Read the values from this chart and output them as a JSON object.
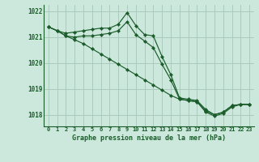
{
  "title": "Graphe pression niveau de la mer (hPa)",
  "background_color": "#cce8dc",
  "grid_color": "#aaccbb",
  "line_color": "#1a5c2a",
  "xlim": [
    -0.5,
    23.5
  ],
  "ylim": [
    1017.55,
    1022.25
  ],
  "yticks": [
    1018,
    1019,
    1020,
    1021,
    1022
  ],
  "xticks": [
    0,
    1,
    2,
    3,
    4,
    5,
    6,
    7,
    8,
    9,
    10,
    11,
    12,
    13,
    14,
    15,
    16,
    17,
    18,
    19,
    20,
    21,
    22,
    23
  ],
  "series": [
    {
      "x": [
        0,
        1,
        2,
        3,
        4,
        5,
        6,
        7,
        8,
        9,
        10,
        11,
        12,
        13,
        14,
        15,
        16,
        17,
        18,
        19,
        20,
        21,
        22,
        23
      ],
      "y": [
        1021.4,
        1021.25,
        1021.15,
        1021.2,
        1021.25,
        1021.3,
        1021.35,
        1021.35,
        1021.5,
        1021.95,
        1021.45,
        1021.1,
        1021.05,
        1020.25,
        1019.55,
        1018.65,
        1018.6,
        1018.55,
        1018.2,
        1018.0,
        1018.1,
        1018.35,
        1018.4,
        1018.4
      ]
    },
    {
      "x": [
        0,
        1,
        2,
        3,
        4,
        5,
        6,
        7,
        8,
        9,
        10,
        11,
        12,
        13,
        14,
        15,
        16,
        17,
        18,
        19,
        20,
        21,
        22,
        23
      ],
      "y": [
        1021.4,
        1021.25,
        1021.05,
        1021.0,
        1021.05,
        1021.05,
        1021.1,
        1021.15,
        1021.25,
        1021.6,
        1021.1,
        1020.85,
        1020.6,
        1019.95,
        1019.35,
        1018.6,
        1018.55,
        1018.5,
        1018.15,
        1018.0,
        1018.1,
        1018.35,
        1018.4,
        1018.4
      ]
    },
    {
      "x": [
        0,
        1,
        2,
        3,
        4,
        5,
        6,
        7,
        8,
        9,
        10,
        11,
        12,
        13,
        14,
        15,
        16,
        17,
        18,
        19,
        20,
        21,
        22,
        23
      ],
      "y": [
        1021.4,
        1021.25,
        1021.05,
        1020.9,
        1020.75,
        1020.55,
        1020.35,
        1020.15,
        1019.95,
        1019.75,
        1019.55,
        1019.35,
        1019.15,
        1018.95,
        1018.75,
        1018.6,
        1018.55,
        1018.5,
        1018.1,
        1017.95,
        1018.05,
        1018.3,
        1018.4,
        1018.4
      ]
    }
  ]
}
